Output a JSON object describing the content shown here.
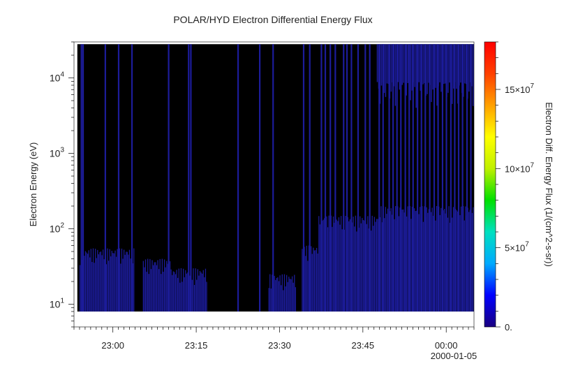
{
  "chart_data": {
    "type": "heatmap",
    "title": "POLAR/HYD  Electron Differential Energy Flux",
    "xlabel": "",
    "ylabel": "Electron Energy (eV)",
    "date_label": "2000-01-05",
    "x_ticks": [
      "23:00",
      "23:15",
      "23:30",
      "23:45",
      "00:00"
    ],
    "x_tick_minutes": [
      0,
      15,
      30,
      45,
      60
    ],
    "x_range_minutes": [
      -7,
      65
    ],
    "y_scale": "log",
    "y_range": [
      5,
      30000
    ],
    "data_y_range": [
      8,
      28000
    ],
    "y_tick_labels": [
      {
        "base": "10",
        "exp": "1",
        "value": 10
      },
      {
        "base": "10",
        "exp": "2",
        "value": 100
      },
      {
        "base": "10",
        "exp": "3",
        "value": 1000
      },
      {
        "base": "10",
        "exp": "4",
        "value": 10000
      }
    ],
    "colorbar": {
      "label": "Electron Diff. Energy Flux (1/(cm^2-s-sr))",
      "range": [
        0,
        180000000
      ],
      "colors": [
        "#1a0080",
        "#0000ff",
        "#00aaff",
        "#00e0c0",
        "#00e000",
        "#c0f000",
        "#ffff00",
        "#ffa000",
        "#ff4000",
        "#ff0000"
      ],
      "ticks": [
        {
          "base": "0.",
          "exp": "",
          "value": 0
        },
        {
          "base": "5×10",
          "exp": "7",
          "value": 50000000
        },
        {
          "base": "10×10",
          "exp": "7",
          "value": 100000000
        },
        {
          "base": "15×10",
          "exp": "7",
          "value": 150000000
        }
      ]
    },
    "background_value_color": "#000000",
    "low_flux_color": "#1c1c9a",
    "full_bands_minutes": [
      -5.8,
      -5.5,
      -1.5,
      0.9,
      3.3,
      9.9,
      13.9,
      13.5,
      22.4,
      26.3,
      28.7,
      34.2,
      35.3,
      37.4,
      38.1,
      39.0,
      39.9,
      41.4,
      42.0,
      42.8,
      44.0,
      45.3,
      46.1,
      47.8,
      48.5,
      49.6,
      50.3,
      51.0,
      51.7,
      52.5,
      53.2,
      53.9,
      54.7,
      55.4,
      56.1,
      56.9,
      57.7,
      58.4,
      59.2,
      59.9,
      60.7,
      61.4,
      62.1,
      62.8,
      63.6,
      64.3
    ],
    "low_energy_segments": [
      {
        "t0": -6.0,
        "t1": 3.9,
        "emax": 55
      },
      {
        "t0": 5.4,
        "t1": 10.4,
        "emax": 40
      },
      {
        "t0": 10.4,
        "t1": 17.0,
        "emax": 30
      },
      {
        "t0": 28.0,
        "t1": 33.0,
        "emax": 25
      },
      {
        "t0": 34.0,
        "t1": 37.0,
        "emax": 60
      },
      {
        "t0": 37.0,
        "t1": 48.0,
        "emax": 150
      },
      {
        "t0": 48.0,
        "t1": 65.0,
        "emax": 200
      }
    ],
    "high_energy_region": {
      "t0": 47.5,
      "t1": 65.0,
      "emin": 8000
    }
  }
}
